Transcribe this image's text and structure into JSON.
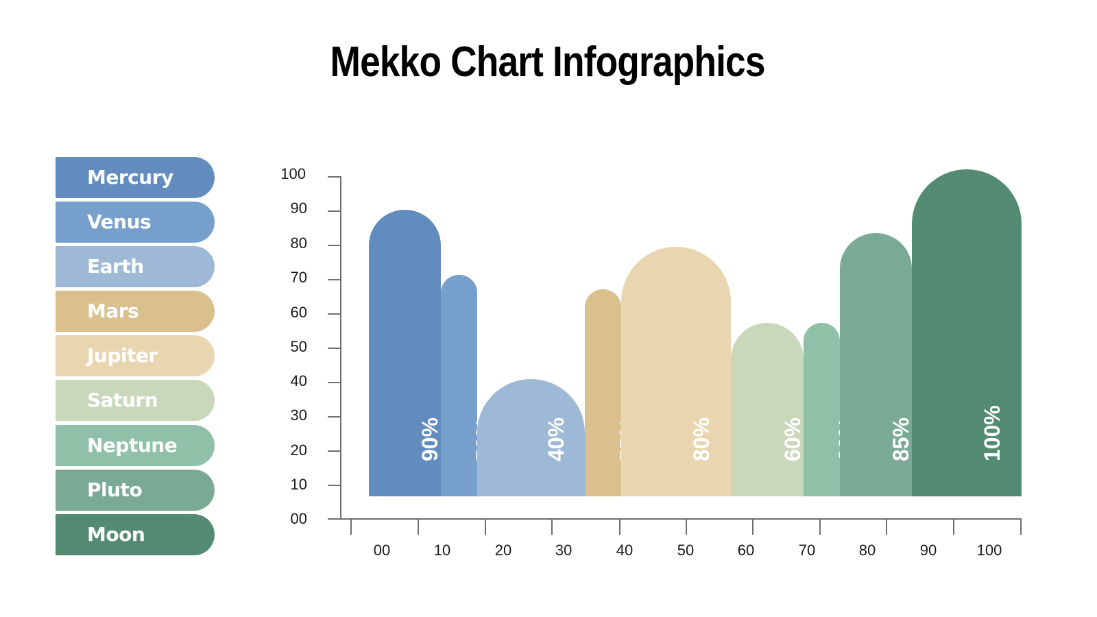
{
  "title": "Mekko Chart Infographics",
  "legend": [
    {
      "label": "Mercury",
      "color": "#618cbd"
    },
    {
      "label": "Venus",
      "color": "#769fcb"
    },
    {
      "label": "Earth",
      "color": "#9db9d5"
    },
    {
      "label": "Mars",
      "color": "#d9c08d"
    },
    {
      "label": "Jupiter",
      "color": "#e9d6b0"
    },
    {
      "label": "Saturn",
      "color": "#c9d7bb"
    },
    {
      "label": "Neptune",
      "color": "#90c1a8"
    },
    {
      "label": "Pluto",
      "color": "#7aa996"
    },
    {
      "label": "Moon",
      "color": "#538a72"
    }
  ],
  "y_ticks": [
    "100",
    "90",
    "80",
    "70",
    "60",
    "50",
    "40",
    "30",
    "20",
    "10",
    "00"
  ],
  "x_ticks": [
    "00",
    "10",
    "20",
    "30",
    "40",
    "50",
    "60",
    "70",
    "80",
    "90",
    "100"
  ],
  "bars": [
    {
      "name": "Mercury",
      "label": "90%"
    },
    {
      "name": "Venus",
      "label": "70%"
    },
    {
      "name": "Earth",
      "label": "40%"
    },
    {
      "name": "Mars",
      "label": "75%"
    },
    {
      "name": "Jupiter",
      "label": "80%"
    },
    {
      "name": "Saturn",
      "label": "60%"
    },
    {
      "name": "Neptune",
      "label": "60%"
    },
    {
      "name": "Pluto",
      "label": "85%"
    },
    {
      "name": "Moon",
      "label": "100%"
    }
  ],
  "chart_data": {
    "type": "bar",
    "subtype": "mekko (variable-width bars with rounded tops)",
    "title": "Mekko Chart Infographics",
    "categories": [
      "Mercury",
      "Venus",
      "Earth",
      "Mars",
      "Jupiter",
      "Saturn",
      "Neptune",
      "Pluto",
      "Moon"
    ],
    "values": [
      90,
      70,
      40,
      75,
      80,
      60,
      60,
      85,
      100
    ],
    "value_labels": [
      "90%",
      "70%",
      "40%",
      "75%",
      "80%",
      "60%",
      "60%",
      "85%",
      "100%"
    ],
    "visual_heights_on_yaxis": [
      84,
      65,
      34,
      61,
      73,
      51,
      51,
      77,
      96
    ],
    "relative_widths": [
      11,
      5,
      16,
      5,
      16,
      11,
      5,
      11,
      16
    ],
    "colors": [
      "#618cbd",
      "#769fcb",
      "#9db9d5",
      "#d9c08d",
      "#e9d6b0",
      "#c9d7bb",
      "#90c1a8",
      "#7aa996",
      "#538a72"
    ],
    "xlabel": "",
    "ylabel": "",
    "ylim": [
      0,
      100
    ],
    "xlim": [
      0,
      100
    ],
    "y_ticks": [
      0,
      10,
      20,
      30,
      40,
      50,
      60,
      70,
      80,
      90,
      100
    ],
    "x_ticks": [
      0,
      10,
      20,
      30,
      40,
      50,
      60,
      70,
      80,
      90,
      100
    ],
    "grid": false,
    "legend_position": "left"
  }
}
